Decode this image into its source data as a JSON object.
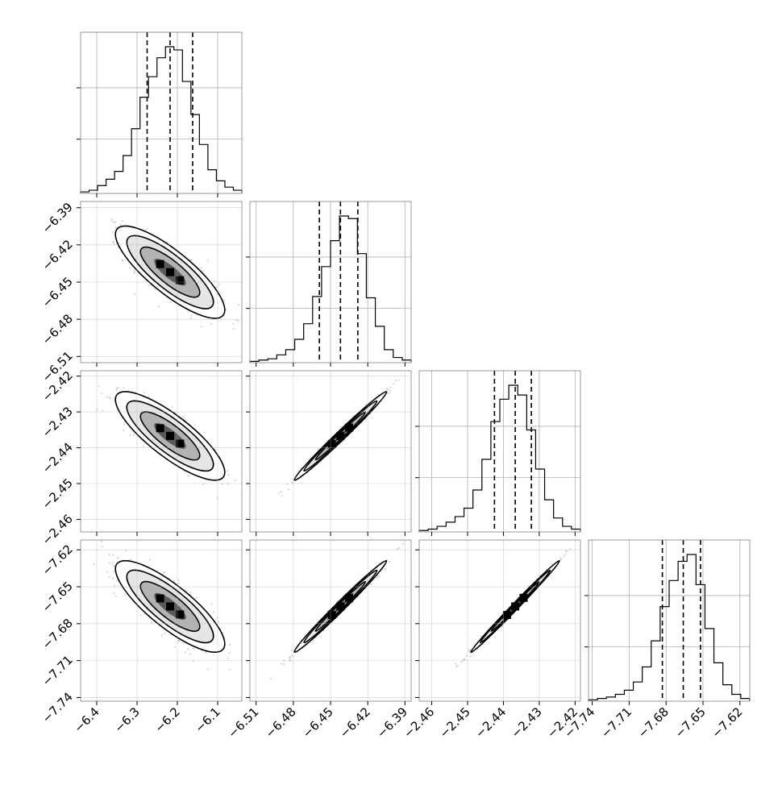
{
  "chart_data": {
    "type": "corner",
    "parameters": [
      {
        "range": [
          -6.44,
          -6.04
        ],
        "ticks": [
          -6.4,
          -6.3,
          -6.2,
          -6.1
        ],
        "tick_labels": [
          "−6.4",
          "−6.3",
          "−6.2",
          "−6.1"
        ],
        "quantiles": [
          -6.275,
          -6.218,
          -6.162
        ]
      },
      {
        "range": [
          -6.515,
          -6.385
        ],
        "ticks": [
          -6.51,
          -6.48,
          -6.45,
          -6.42,
          -6.39
        ],
        "tick_labels": [
          "−6.51",
          "−6.48",
          "−6.45",
          "−6.42",
          "−6.39"
        ],
        "quantiles": [
          -6.459,
          -6.442,
          -6.428
        ]
      },
      {
        "range": [
          -2.4635,
          -2.4185
        ],
        "ticks": [
          -2.46,
          -2.45,
          -2.44,
          -2.43,
          -2.42
        ],
        "tick_labels": [
          "−2.46",
          "−2.45",
          "−2.44",
          "−2.43",
          "−2.42"
        ],
        "quantiles": [
          -2.4425,
          -2.4367,
          -2.4322
        ]
      },
      {
        "range": [
          -7.743,
          -7.612
        ],
        "ticks": [
          -7.74,
          -7.71,
          -7.68,
          -7.65,
          -7.62
        ],
        "tick_labels": [
          "−7.74",
          "−7.71",
          "−7.68",
          "−7.65",
          "−7.62"
        ],
        "quantiles": [
          -7.683,
          -7.666,
          -7.652
        ]
      }
    ],
    "hist_counts": [
      [
        1,
        2,
        5,
        9,
        14,
        24,
        41,
        61,
        74,
        86,
        93,
        91,
        71,
        50,
        31,
        15,
        8,
        4,
        2
      ],
      [
        1,
        2,
        3,
        6,
        10,
        18,
        30,
        51,
        74,
        94,
        113,
        111,
        84,
        50,
        28,
        10,
        4,
        2
      ],
      [
        1,
        2,
        4,
        7,
        11,
        17,
        30,
        52,
        79,
        95,
        105,
        98,
        73,
        45,
        23,
        10,
        4,
        2
      ],
      [
        1,
        2,
        3,
        5,
        8,
        14,
        25,
        44,
        69,
        88,
        102,
        107,
        85,
        53,
        28,
        12,
        5,
        2
      ]
    ],
    "correlations": {
      "1-0": -0.82,
      "2-0": -0.82,
      "3-0": -0.82,
      "2-1": 0.99,
      "3-1": 0.99,
      "3-2": 0.995
    },
    "grid": true,
    "title": "",
    "xlabel": "",
    "ylabel": ""
  }
}
